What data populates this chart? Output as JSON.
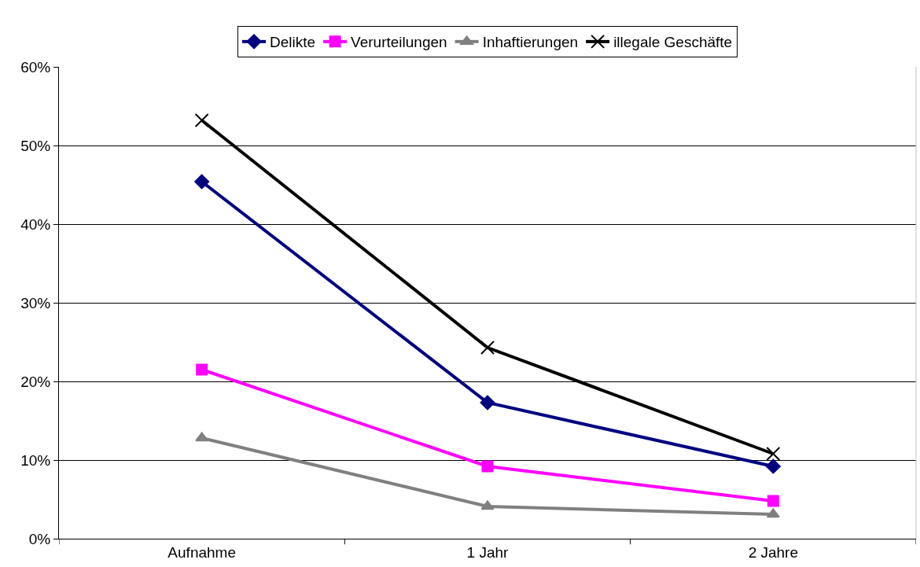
{
  "chart_data": {
    "type": "line",
    "categories": [
      "Aufnahme",
      "1 Jahr",
      "2 Jahre"
    ],
    "series": [
      {
        "name": "Delikte",
        "color": "#000080",
        "marker": "diamond",
        "values": [
          45.4,
          17.3,
          9.2
        ]
      },
      {
        "name": "Verurteilungen",
        "color": "#ff00ff",
        "marker": "square",
        "values": [
          21.5,
          9.2,
          4.8
        ]
      },
      {
        "name": "Inhaftierungen",
        "color": "#808080",
        "marker": "triangle",
        "values": [
          12.8,
          4.1,
          3.1
        ]
      },
      {
        "name": "illegale Geschäfte",
        "color": "#000000",
        "marker": "cross",
        "values": [
          53.2,
          24.3,
          10.8
        ]
      }
    ],
    "ylim": [
      0,
      60
    ],
    "yticks": [
      {
        "value": 0,
        "label": "0%"
      },
      {
        "value": 10,
        "label": "10%"
      },
      {
        "value": 20,
        "label": "20%"
      },
      {
        "value": 30,
        "label": "30%"
      },
      {
        "value": 40,
        "label": "40%"
      },
      {
        "value": 50,
        "label": "50%"
      },
      {
        "value": 60,
        "label": "60%"
      }
    ],
    "grid": "y",
    "legend": "top",
    "line_style": "solid"
  }
}
